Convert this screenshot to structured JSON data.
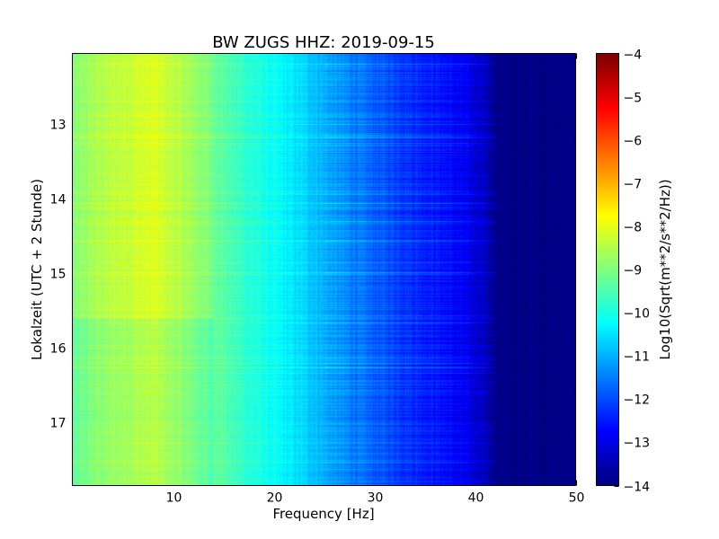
{
  "chart_data": {
    "type": "heatmap",
    "title": "BW ZUGS HHZ: 2019-09-15",
    "xlabel": "Frequency [Hz]",
    "ylabel": "Lokalzeit (UTC + 2 Stunde)",
    "xlim": [
      0,
      50
    ],
    "ylim": [
      17.85,
      12.05
    ],
    "x_ticks": [
      10,
      20,
      30,
      40,
      50
    ],
    "y_ticks": [
      13,
      14,
      15,
      16,
      17
    ],
    "grid": true,
    "colormap": "jet",
    "colorbar": {
      "label": "Log10(Sqrt(m**2/s**2/Hz))",
      "range": [
        -14,
        -4
      ],
      "ticks": [
        -14,
        -13,
        -12,
        -11,
        -10,
        -9,
        -8,
        -7,
        -6,
        -5,
        -4
      ]
    },
    "spectrum_profile": {
      "frequency_hz": [
        0,
        2,
        5,
        8,
        10,
        13,
        16,
        20,
        24,
        26,
        30,
        34,
        37,
        39,
        41,
        42,
        50
      ],
      "log10_amplitude": [
        -9.0,
        -8.6,
        -8.3,
        -8.1,
        -8.4,
        -8.9,
        -9.6,
        -10.2,
        -10.8,
        -11.2,
        -11.8,
        -12.3,
        -12.6,
        -12.9,
        -13.3,
        -13.9,
        -14.0
      ]
    }
  }
}
